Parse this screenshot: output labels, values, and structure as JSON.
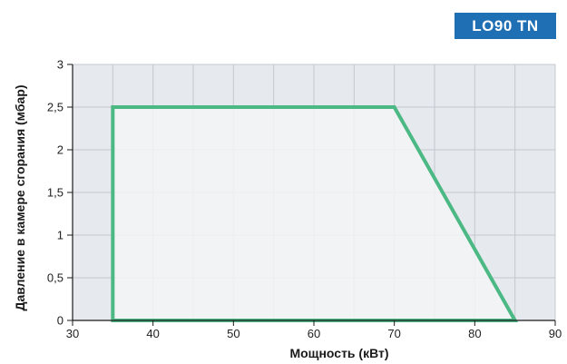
{
  "badge": "LO90 TN",
  "chart_data": {
    "type": "area",
    "title": "",
    "xlabel": "Мощность (кВт)",
    "ylabel": "Давление в камере сгорания (мбар)",
    "xlim": [
      30,
      90
    ],
    "ylim": [
      0,
      3
    ],
    "x_ticks": [
      "30",
      "40",
      "50",
      "60",
      "70",
      "80",
      "90"
    ],
    "y_ticks": [
      "0",
      "0,5",
      "1",
      "1,5",
      "2",
      "2,5",
      "3"
    ],
    "x_tick_values": [
      30,
      40,
      50,
      60,
      70,
      80,
      90
    ],
    "y_tick_values": [
      0,
      0.5,
      1,
      1.5,
      2,
      2.5,
      3
    ],
    "grid": true,
    "series": [
      {
        "x": [
          35,
          35,
          70,
          85,
          35
        ],
        "y": [
          0,
          2.5,
          2.5,
          0,
          0
        ]
      }
    ],
    "colors": {
      "line": "#4cb985",
      "region_fill": "#f3f5f7",
      "outside_fill": "#e6e9ee",
      "grid": "#c4c8ce",
      "axis": "#1a1a1a",
      "badge_bg": "#1f6fb5"
    }
  }
}
